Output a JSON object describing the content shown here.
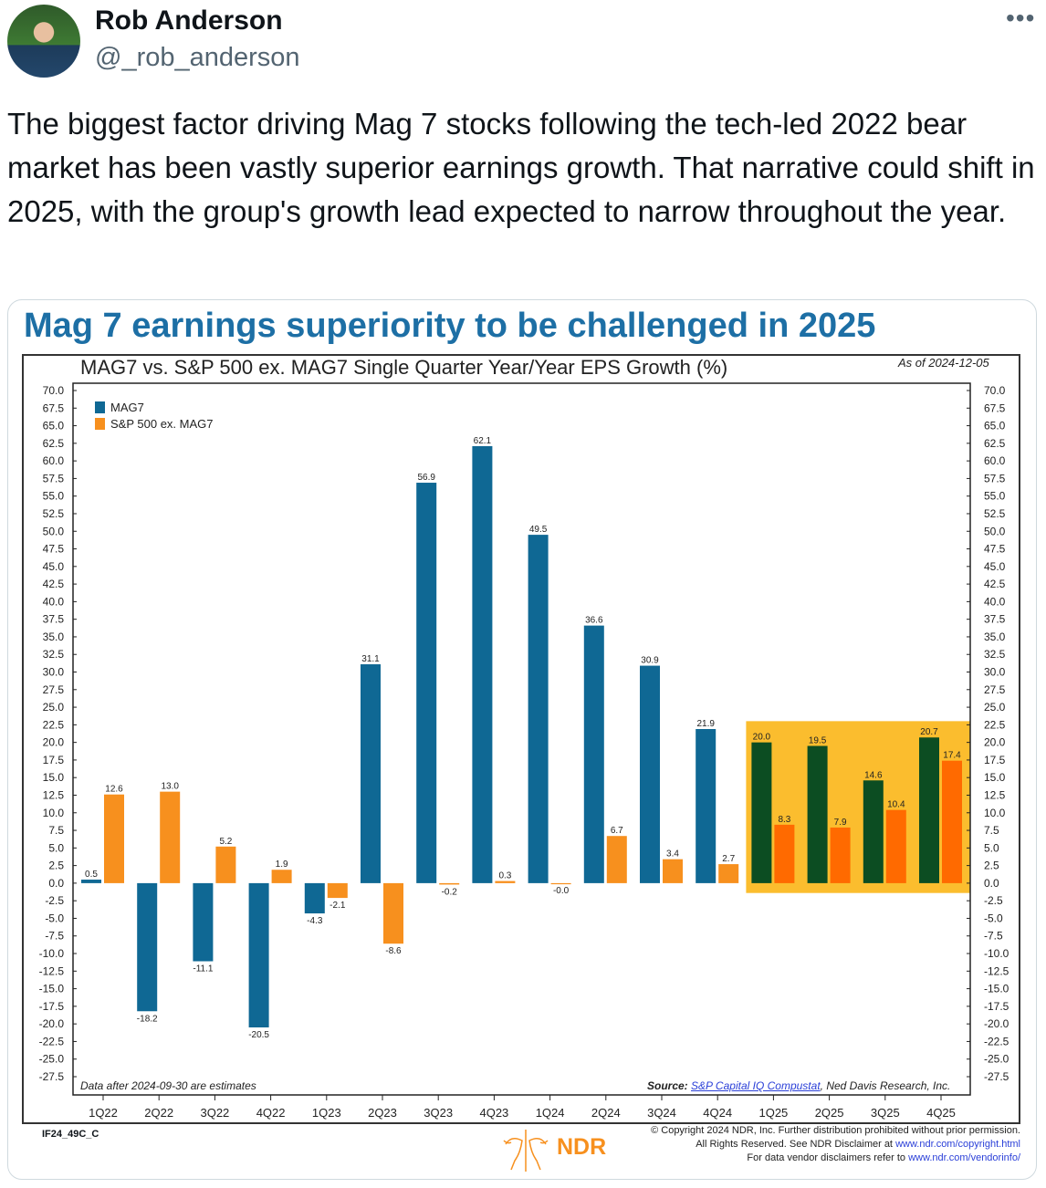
{
  "tweet": {
    "author_name": "Rob Anderson",
    "author_handle": "@_rob_anderson",
    "more_icon": "more-horizontal-icon",
    "text": "The biggest factor driving Mag 7 stocks following the tech-led 2022 bear market has been vastly superior earnings growth. That narrative could shift in 2025, with the group's growth lead expected to narrow throughout the year."
  },
  "card": {
    "headline": "Mag 7 earnings superiority to be challenged in 2025",
    "as_of": "As of 2024-12-05",
    "note": "Data after 2024-09-30 are estimates",
    "source_label": "Source:",
    "source_link": "S&P Capital IQ Compustat",
    "source_rest": ", Ned Davis Research, Inc.",
    "chart_code": "IF24_49C_C",
    "copyright_lines": [
      "© Copyright 2024 NDR, Inc. Further distribution prohibited without prior permission.",
      "All Rights Reserved. See NDR Disclaimer at ",
      "For data vendor disclaimers refer to "
    ],
    "copyright_links": [
      "www.ndr.com/copyright.html",
      "www.ndr.com/vendorinfo/"
    ],
    "logo_text": "NDR"
  },
  "chart_data": {
    "type": "bar",
    "title": "MAG7 vs. S&P 500 ex. MAG7 Single Quarter Year/Year EPS Growth (%)",
    "xlabel": "",
    "ylabel": "",
    "ylim": [
      -27.5,
      70
    ],
    "ytick_step": 2.5,
    "legend_position": "top-left",
    "categories": [
      "1Q22",
      "2Q22",
      "3Q22",
      "4Q22",
      "1Q23",
      "2Q23",
      "3Q23",
      "4Q23",
      "1Q24",
      "2Q24",
      "3Q24",
      "4Q24",
      "1Q25",
      "2Q25",
      "3Q25",
      "4Q25"
    ],
    "series": [
      {
        "name": "MAG7",
        "color": "#0f6894",
        "estimate_color": "#0c4d22",
        "values": [
          0.5,
          -18.2,
          -11.1,
          -20.5,
          -4.3,
          31.1,
          56.9,
          62.1,
          49.5,
          36.6,
          30.9,
          21.9,
          20.0,
          19.5,
          14.6,
          20.7
        ],
        "labels": [
          "0.5",
          "-18.2",
          "-11.1",
          "-20.5",
          "-4.3",
          "31.1",
          "56.9",
          "62.1",
          "49.5",
          "36.6",
          "30.9",
          "21.9",
          "20.0",
          "19.5",
          "14.6",
          "20.7"
        ]
      },
      {
        "name": "S&P 500 ex. MAG7",
        "color": "#f7901e",
        "estimate_color": "#ff6a00",
        "values": [
          12.6,
          13.0,
          5.2,
          1.9,
          -2.1,
          -8.6,
          -0.2,
          0.3,
          -0.0,
          6.7,
          3.4,
          2.7,
          8.3,
          7.9,
          10.4,
          17.4
        ],
        "labels": [
          "12.6",
          "13.0",
          "5.2",
          "1.9",
          "-2.1",
          "-8.6",
          "-0.2",
          "0.3",
          "-0.0",
          "6.7",
          "3.4",
          "2.7",
          "8.3",
          "7.9",
          "10.4",
          "17.4"
        ]
      }
    ],
    "estimates_start_index": 12,
    "highlight_color": "#fbbd2e"
  }
}
